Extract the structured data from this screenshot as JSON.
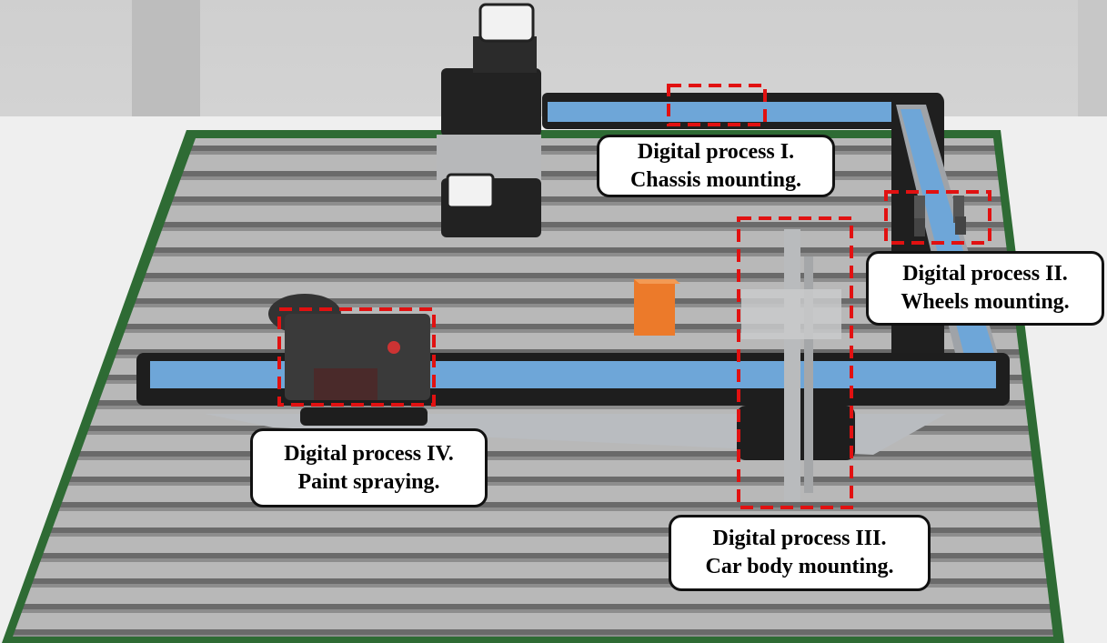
{
  "annotations": [
    {
      "id": "p1",
      "line1": "Digital process I.",
      "line2": "Chassis mounting."
    },
    {
      "id": "p2",
      "line1": "Digital process II.",
      "line2": "Wheels mounting."
    },
    {
      "id": "p3",
      "line1": "Digital process III.",
      "line2": "Car body mounting."
    },
    {
      "id": "p4",
      "line1": "Digital process IV.",
      "line2": "Paint spraying."
    }
  ],
  "colors": {
    "highlight": "#e11111",
    "conveyor_belt": "#6ea6d8",
    "baseplate_border": "#2e6b34",
    "rail": "#9a9a9a",
    "cube": "#ec7a2a"
  }
}
